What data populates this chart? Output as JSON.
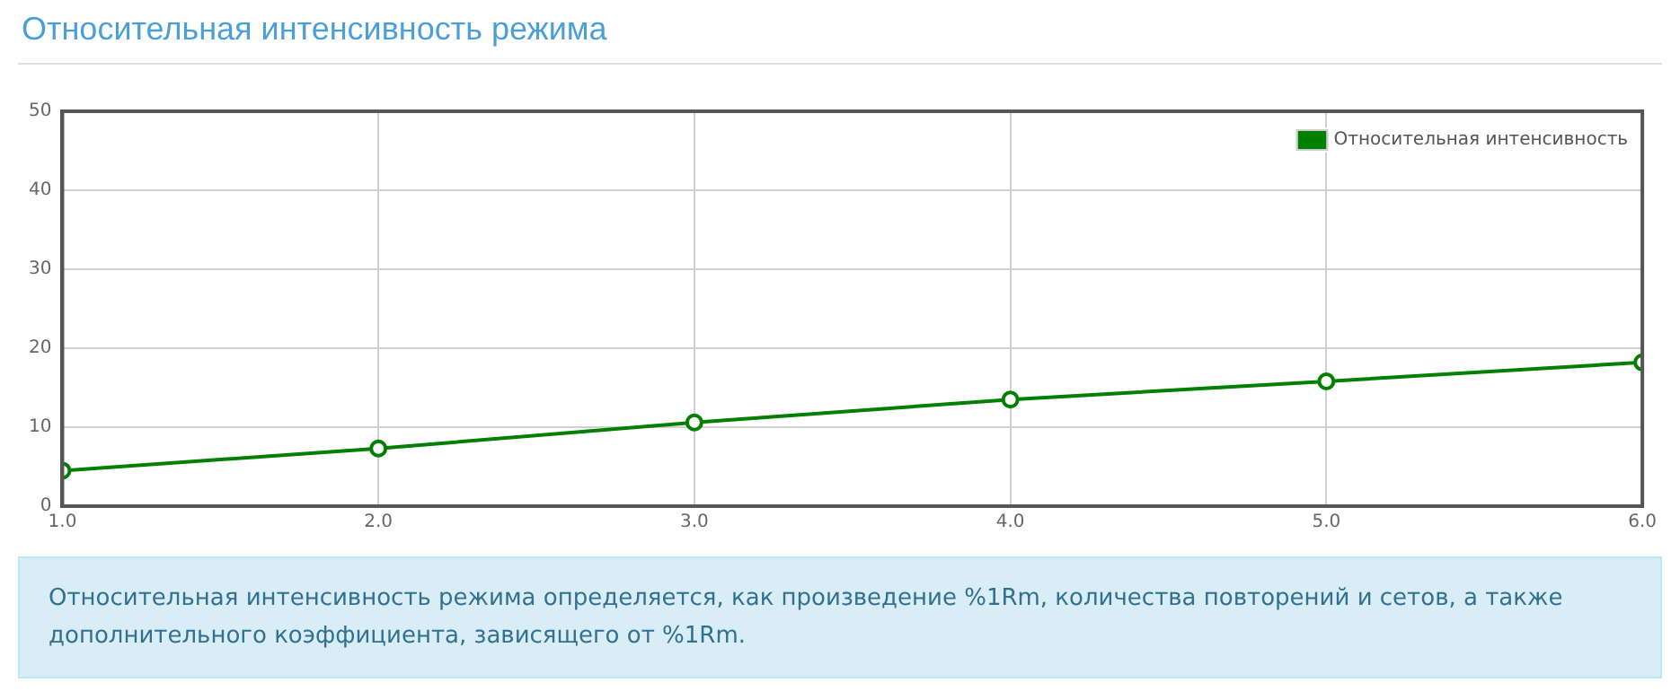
{
  "chart_data": {
    "type": "line",
    "title": "Относительная интенсивность режима",
    "x": [
      1,
      2,
      3,
      4,
      5,
      6
    ],
    "series": [
      {
        "name": "Относительная интенсивность",
        "color": "#008000",
        "values": [
          4.5,
          7.3,
          10.6,
          13.5,
          15.8,
          18.2
        ]
      }
    ],
    "xlim": [
      1,
      6
    ],
    "xticks": [
      {
        "value": 1,
        "label": "1.0"
      },
      {
        "value": 2,
        "label": "2.0"
      },
      {
        "value": 3,
        "label": "3.0"
      },
      {
        "value": 4,
        "label": "4.0"
      },
      {
        "value": 5,
        "label": "5.0"
      },
      {
        "value": 6,
        "label": "6.0"
      }
    ],
    "ylim": [
      0,
      50
    ],
    "yticks": [
      0,
      10,
      20,
      30,
      40,
      50
    ],
    "grid": true,
    "legend": "top right",
    "marker": "circle",
    "line_style": "solid",
    "annotations": [
      "Относительная интенсивность режима определяется, как произведение %1Rm, количества повторений и сетов, а также дополнительного коэффициента, зависящего от %1Rm."
    ]
  }
}
